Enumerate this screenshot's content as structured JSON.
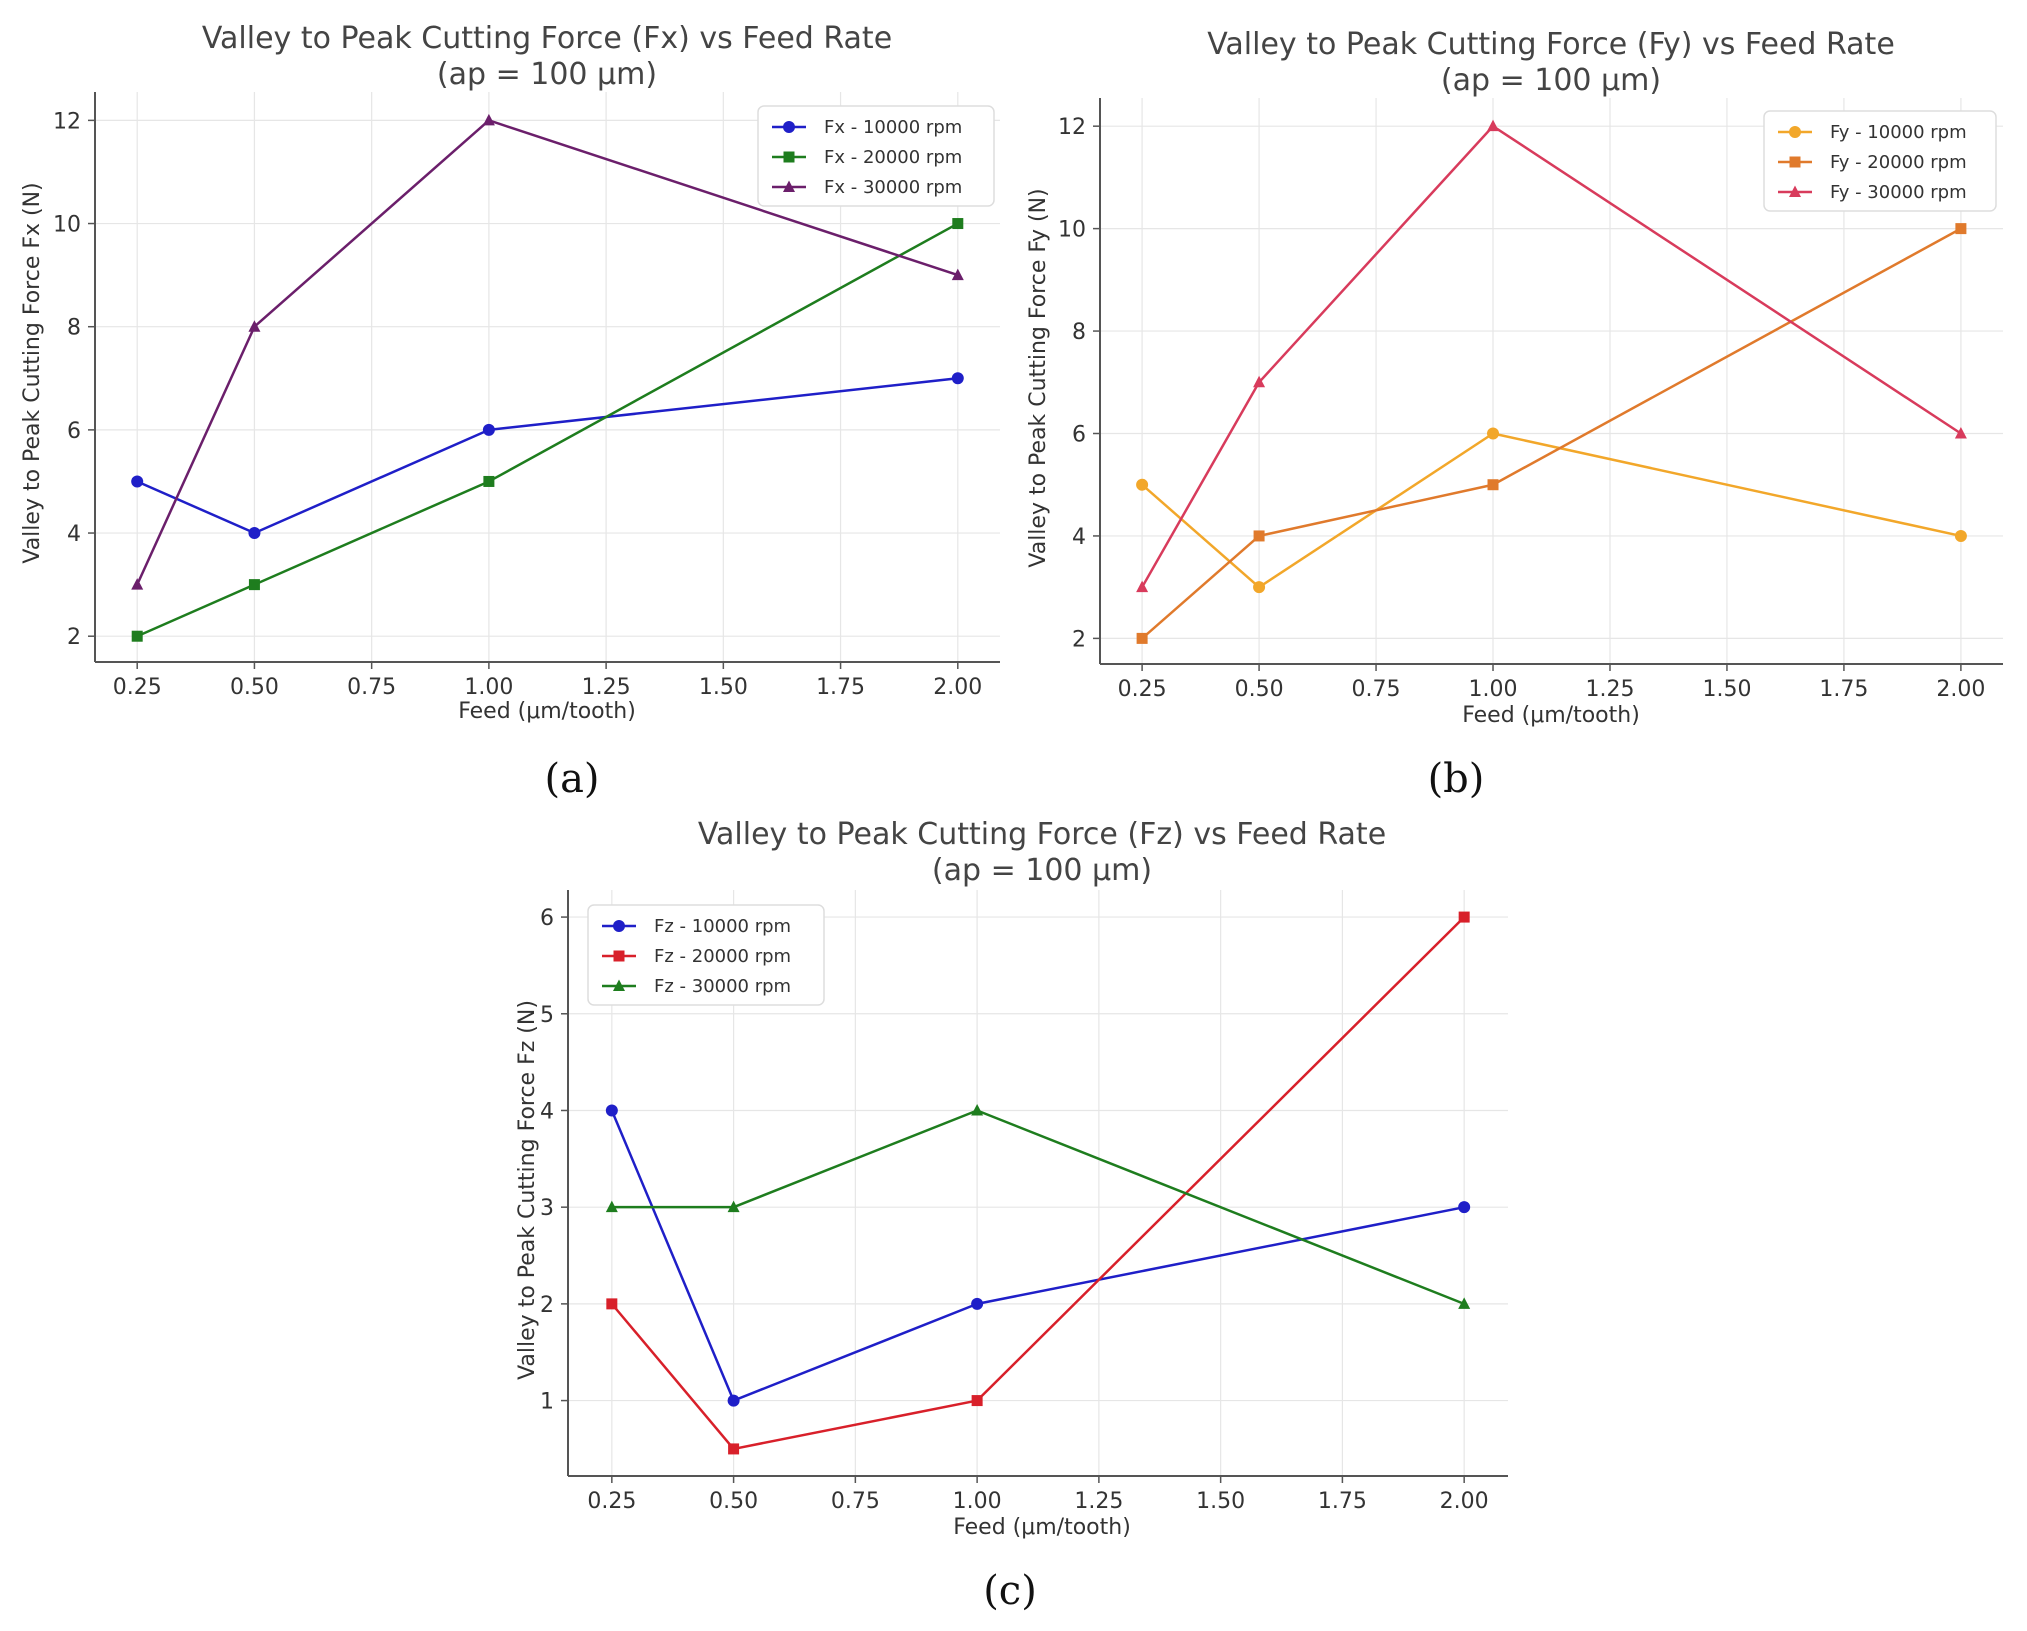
{
  "chart_data": [
    {
      "panel": "(a)",
      "type": "line",
      "title": "Valley to Peak Cutting Force (Fx) vs Feed Rate",
      "subtitle": "(ap = 100 μm)",
      "xlabel": "Feed (μm/tooth)",
      "ylabel": "Valley to Peak Cutting Force Fx (N)",
      "x": [
        0.25,
        0.5,
        1.0,
        2.0
      ],
      "xlim": [
        0.16,
        2.09
      ],
      "ylim": [
        1.5,
        12.55
      ],
      "xticks": [
        0.25,
        0.5,
        0.75,
        1.0,
        1.25,
        1.5,
        1.75,
        2.0
      ],
      "xtick_labels": [
        "0.25",
        "0.50",
        "0.75",
        "1.00",
        "1.25",
        "1.50",
        "1.75",
        "2.00"
      ],
      "yticks": [
        2,
        4,
        6,
        8,
        10,
        12
      ],
      "ytick_labels": [
        "2",
        "4",
        "6",
        "8",
        "10",
        "12"
      ],
      "grid": true,
      "legend_position": "top-right",
      "series": [
        {
          "name": "Fx - 10000 rpm",
          "values": [
            5,
            4,
            6,
            7
          ],
          "color": "#1f1fc8",
          "marker": "circle"
        },
        {
          "name": "Fx - 20000 rpm",
          "values": [
            2,
            3,
            5,
            10
          ],
          "color": "#1e7d1e",
          "marker": "square"
        },
        {
          "name": "Fx - 30000 rpm",
          "values": [
            3,
            8,
            12,
            9
          ],
          "color": "#6b1f6b",
          "marker": "triangle"
        }
      ]
    },
    {
      "panel": "(b)",
      "type": "line",
      "title": "Valley to Peak Cutting Force (Fy) vs Feed Rate",
      "subtitle": "(ap = 100 μm)",
      "xlabel": "Feed (μm/tooth)",
      "ylabel": "Valley to Peak Cutting Force Fy (N)",
      "x": [
        0.25,
        0.5,
        1.0,
        2.0
      ],
      "xlim": [
        0.16,
        2.09
      ],
      "ylim": [
        1.5,
        12.55
      ],
      "xticks": [
        0.25,
        0.5,
        0.75,
        1.0,
        1.25,
        1.5,
        1.75,
        2.0
      ],
      "xtick_labels": [
        "0.25",
        "0.50",
        "0.75",
        "1.00",
        "1.25",
        "1.50",
        "1.75",
        "2.00"
      ],
      "yticks": [
        2,
        4,
        6,
        8,
        10,
        12
      ],
      "ytick_labels": [
        "2",
        "4",
        "6",
        "8",
        "10",
        "12"
      ],
      "grid": true,
      "legend_position": "top-right",
      "series": [
        {
          "name": "Fy - 10000 rpm",
          "values": [
            5,
            3,
            6,
            4
          ],
          "color": "#f2a72a",
          "marker": "circle"
        },
        {
          "name": "Fy - 20000 rpm",
          "values": [
            2,
            4,
            5,
            10
          ],
          "color": "#e07a2c",
          "marker": "square"
        },
        {
          "name": "Fy - 30000 rpm",
          "values": [
            3,
            7,
            12,
            6
          ],
          "color": "#d83b5c",
          "marker": "triangle"
        }
      ]
    },
    {
      "panel": "(c)",
      "type": "line",
      "title": "Valley to Peak Cutting Force (Fz) vs Feed Rate",
      "subtitle": "(ap = 100 μm)",
      "xlabel": "Feed (μm/tooth)",
      "ylabel": "Valley to Peak Cutting Force Fz (N)",
      "x": [
        0.25,
        0.5,
        1.0,
        2.0
      ],
      "xlim": [
        0.16,
        2.09
      ],
      "ylim": [
        0.22,
        6.28
      ],
      "xticks": [
        0.25,
        0.5,
        0.75,
        1.0,
        1.25,
        1.5,
        1.75,
        2.0
      ],
      "xtick_labels": [
        "0.25",
        "0.50",
        "0.75",
        "1.00",
        "1.25",
        "1.50",
        "1.75",
        "2.00"
      ],
      "yticks": [
        1,
        2,
        3,
        4,
        5,
        6
      ],
      "ytick_labels": [
        "1",
        "2",
        "3",
        "4",
        "5",
        "6"
      ],
      "grid": true,
      "legend_position": "top-left",
      "series": [
        {
          "name": "Fz - 10000 rpm",
          "values": [
            4,
            1,
            2,
            3
          ],
          "color": "#1f1fc8",
          "marker": "circle"
        },
        {
          "name": "Fz - 20000 rpm",
          "values": [
            2,
            0.5,
            1,
            6
          ],
          "color": "#d8202a",
          "marker": "square"
        },
        {
          "name": "Fz - 30000 rpm",
          "values": [
            3,
            3,
            4,
            2
          ],
          "color": "#1e7d1e",
          "marker": "triangle"
        }
      ]
    }
  ]
}
